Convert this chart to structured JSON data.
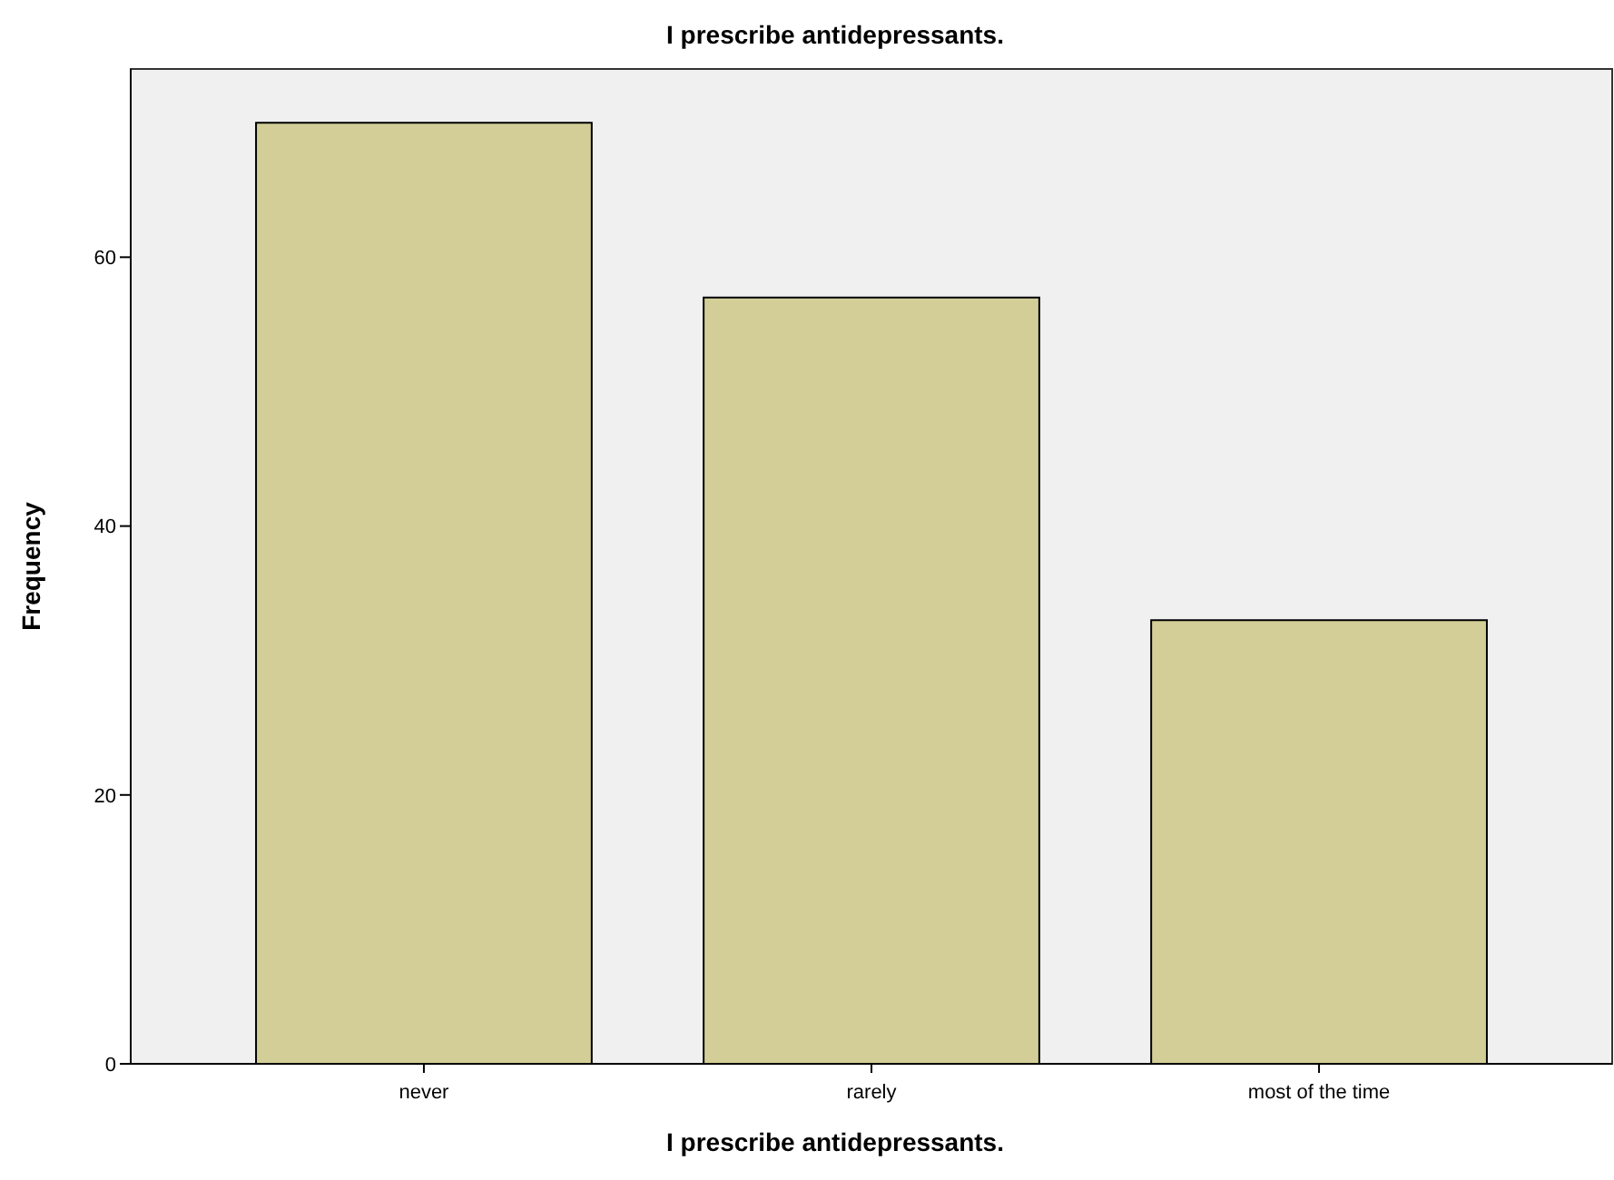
{
  "chart_data": {
    "type": "bar",
    "title": "I  prescribe antidepressants.",
    "xlabel": "I  prescribe antidepressants.",
    "ylabel": "Frequency",
    "categories": [
      "never",
      "rarely",
      "most of the time"
    ],
    "values": [
      70,
      57,
      33
    ],
    "color": "#d3ce97",
    "ylim": [
      0,
      74
    ],
    "yticks": [
      0,
      20,
      40,
      60
    ],
    "grid": false
  }
}
